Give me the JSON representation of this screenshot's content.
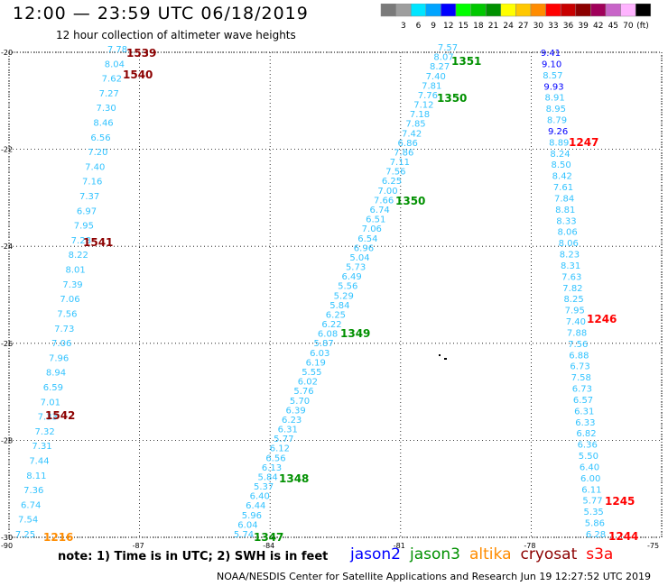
{
  "title": "12:00 — 23:59 UTC 06/18/2019",
  "subtitle": "12 hour collection of altimeter wave heights",
  "color_scale": {
    "unit_label": "(ft)",
    "bins": [
      {
        "label": "",
        "color": "#7a7a7a"
      },
      {
        "label": "3",
        "color": "#9e9e9e"
      },
      {
        "label": "6",
        "color": "#00e5ff"
      },
      {
        "label": "9",
        "color": "#00a4ff"
      },
      {
        "label": "12",
        "color": "#0000ff"
      },
      {
        "label": "15",
        "color": "#00ff00"
      },
      {
        "label": "18",
        "color": "#00c800"
      },
      {
        "label": "21",
        "color": "#009000"
      },
      {
        "label": "24",
        "color": "#ffff00"
      },
      {
        "label": "27",
        "color": "#ffc800"
      },
      {
        "label": "30",
        "color": "#ff8c00"
      },
      {
        "label": "33",
        "color": "#ff0000"
      },
      {
        "label": "36",
        "color": "#c80000"
      },
      {
        "label": "39",
        "color": "#8c0000"
      },
      {
        "label": "42",
        "color": "#a0005a"
      },
      {
        "label": "45",
        "color": "#c864c8"
      },
      {
        "label": "70",
        "color": "#ffb4ff"
      },
      {
        "label": "",
        "color": "#000000"
      }
    ]
  },
  "axes": {
    "lat_labels": [
      "-20",
      "-22",
      "-24",
      "-26",
      "-28",
      "-30"
    ],
    "lon_labels": [
      "-90",
      "-87",
      "-84",
      "-81",
      "-78",
      "-75"
    ]
  },
  "tracks": [
    {
      "satellite": "cryosat",
      "color": "#33c3ff",
      "values": [
        "7.78",
        "8.04",
        "7.62",
        "7.27",
        "7.30",
        "8.46",
        "6.56",
        "7.20",
        "7.40",
        "7.16",
        "7.37",
        "6.97",
        "7.95",
        "7.28",
        "8.22",
        "8.01",
        "7.39",
        "7.06",
        "7.56",
        "7.73",
        "7.06",
        "7.96",
        "8.94",
        "6.59",
        "7.01",
        "7.33",
        "7.32",
        "7.31",
        "7.44",
        "8.11",
        "7.36",
        "6.74",
        "7.54",
        "7.25"
      ]
    },
    {
      "satellite": "jason3",
      "color": "#33c3ff",
      "values": [
        "7.57",
        "8.07",
        "8.27",
        "7.40",
        "7.81",
        "7.76",
        "7.12",
        "7.18",
        "7.85",
        "7.42",
        "6.86",
        "7.86",
        "7.11",
        "7.56",
        "6.25",
        "7.00",
        "7.66",
        "6.74",
        "6.51",
        "7.06",
        "6.54",
        "6.96",
        "5.04",
        "5.73",
        "6.49",
        "5.56",
        "5.29",
        "5.84",
        "6.25",
        "6.22",
        "6.08",
        "5.87",
        "6.03",
        "6.19",
        "5.55",
        "6.02",
        "5.76",
        "5.70",
        "6.39",
        "6.23",
        "6.31",
        "5.77",
        "6.12",
        "6.56",
        "6.13",
        "5.84",
        "5.37",
        "6.40",
        "6.44",
        "5.96",
        "6.04",
        "5.74"
      ]
    },
    {
      "satellite": "s3a",
      "color": "#33c3ff",
      "values": [
        "9.41",
        "9.10",
        "8.57",
        "9.93",
        "8.91",
        "8.95",
        "8.79",
        "9.26",
        "8.89",
        "8.24",
        "8.50",
        "8.42",
        "7.61",
        "7.84",
        "8.81",
        "8.33",
        "8.06",
        "8.06",
        "8.23",
        "8.31",
        "7.63",
        "7.82",
        "8.25",
        "7.95",
        "7.40",
        "7.88",
        "7.56",
        "6.88",
        "6.73",
        "7.58",
        "6.73",
        "6.57",
        "6.31",
        "6.33",
        "6.82",
        "6.36",
        "5.50",
        "6.40",
        "6.00",
        "6.11",
        "5.77",
        "5.35",
        "5.86",
        "6.28"
      ]
    }
  ],
  "time_labels": [
    {
      "text": "1539",
      "color": "#8c0000"
    },
    {
      "text": "1540",
      "color": "#8c0000"
    },
    {
      "text": "1541",
      "color": "#8c0000"
    },
    {
      "text": "1542",
      "color": "#8c0000"
    },
    {
      "text": "1216",
      "color": "#ff8c00"
    },
    {
      "text": "1351",
      "color": "#009000"
    },
    {
      "text": "1350",
      "color": "#009000"
    },
    {
      "text": "1350",
      "color": "#009000"
    },
    {
      "text": "1349",
      "color": "#009000"
    },
    {
      "text": "1348",
      "color": "#009000"
    },
    {
      "text": "1347",
      "color": "#009000"
    },
    {
      "text": "1247",
      "color": "#ff0000"
    },
    {
      "text": "1246",
      "color": "#ff0000"
    },
    {
      "text": "1245",
      "color": "#ff0000"
    },
    {
      "text": "1244",
      "color": "#ff0000"
    }
  ],
  "note": "note:  1) Time is in UTC;  2) SWH is in feet",
  "satellites": [
    {
      "name": "jason2",
      "color": "#0000ff"
    },
    {
      "name": "jason3",
      "color": "#009000"
    },
    {
      "name": "altika",
      "color": "#ff8c00"
    },
    {
      "name": "cryosat",
      "color": "#8c0000"
    },
    {
      "name": "s3a",
      "color": "#ff0000"
    }
  ],
  "footer": "NOAA/NESDIS Center for Satellite Applications and Research    Jun 19 12:27:52 UTC 2019"
}
